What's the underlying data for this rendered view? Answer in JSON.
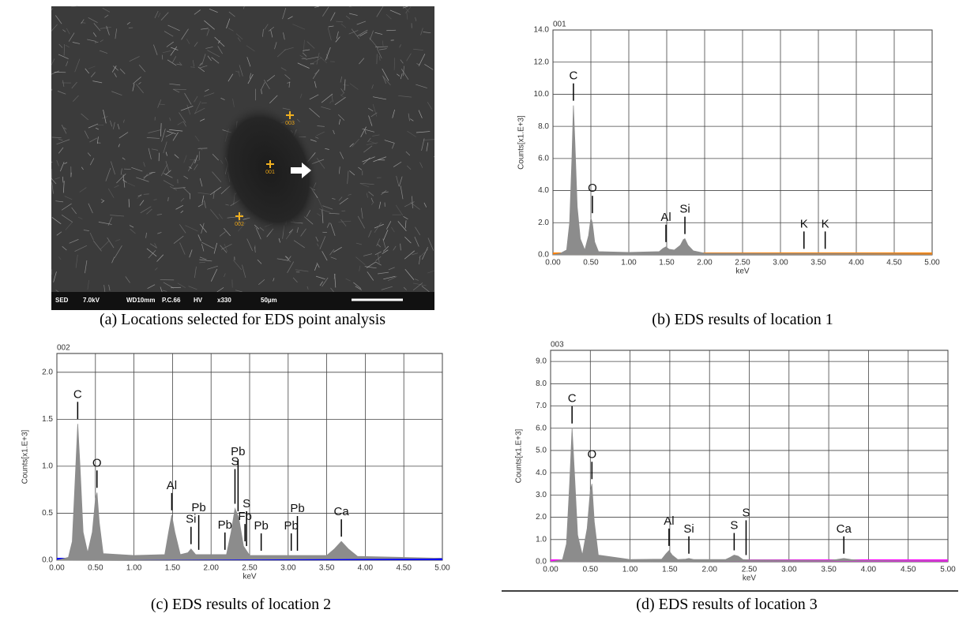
{
  "image": {
    "markers": [
      "003",
      "001",
      "002"
    ],
    "info_bar": [
      "SED",
      "7.0kV",
      "WD10mm",
      "P.C.66",
      "HV",
      "x330",
      "50µm"
    ]
  },
  "captions": [
    "(a) Locations selected for EDS point analysis",
    "(b) EDS results of location 1",
    "(c) EDS results of location 2",
    "(d) EDS results of location 3"
  ],
  "chart_data": [
    {
      "type": "area",
      "title": "001",
      "y_label": "Counts[x1.E+3]",
      "x_label": "keV",
      "xlim": [
        0,
        5
      ],
      "ylim": [
        0,
        14
      ],
      "xticks": [
        {
          "value": 0,
          "label": "0.00"
        },
        {
          "value": 0.5,
          "label": "0.50"
        },
        {
          "value": 1,
          "label": "1.00"
        },
        {
          "value": 1.5,
          "label": "1.50"
        },
        {
          "value": 2,
          "label": "2.00"
        },
        {
          "value": 2.5,
          "label": "2.50"
        },
        {
          "value": 3,
          "label": "3.00"
        },
        {
          "value": 3.5,
          "label": "3.50"
        },
        {
          "value": 4,
          "label": "4.00"
        },
        {
          "value": 4.5,
          "label": "4.50"
        },
        {
          "value": 5,
          "label": "5.00"
        }
      ],
      "yticks": [
        {
          "value": 0,
          "label": "0.0"
        },
        {
          "value": 2,
          "label": "2.0"
        },
        {
          "value": 4,
          "label": "4.0"
        },
        {
          "value": 6,
          "label": "6.0"
        },
        {
          "value": 8,
          "label": "8.0"
        },
        {
          "value": 10,
          "label": "10.0"
        },
        {
          "value": 12,
          "label": "12.0"
        },
        {
          "value": 14,
          "label": "14.0"
        }
      ],
      "grid": true,
      "color": "#ff8000",
      "fill": "#8c8c8c",
      "x": [
        0,
        0.1,
        0.18,
        0.22,
        0.25,
        0.27,
        0.29,
        0.32,
        0.36,
        0.42,
        0.47,
        0.5,
        0.52,
        0.55,
        0.6,
        1.0,
        1.4,
        1.45,
        1.49,
        1.53,
        1.6,
        1.68,
        1.72,
        1.74,
        1.78,
        1.85,
        2.0,
        3.0,
        4.0,
        5.0
      ],
      "values": [
        0,
        0.1,
        0.3,
        2,
        6,
        9.3,
        7,
        3,
        1,
        0.3,
        1.2,
        2.3,
        2.0,
        0.8,
        0.2,
        0.15,
        0.2,
        0.4,
        0.5,
        0.35,
        0.3,
        0.6,
        0.95,
        1.0,
        0.6,
        0.25,
        0.1,
        0.08,
        0.08,
        0.05
      ],
      "annotations": [
        {
          "text": "C",
          "x": 0.27
        },
        {
          "text": "O",
          "x": 0.52
        },
        {
          "text": "Al",
          "x": 1.49
        },
        {
          "text": "Si",
          "x": 1.74
        },
        {
          "text": "K",
          "x": 3.31
        },
        {
          "text": "K",
          "x": 3.59
        }
      ]
    },
    {
      "type": "area",
      "title": "002",
      "y_label": "Counts[x1.E+3]",
      "x_label": "keV",
      "xlim": [
        0,
        5
      ],
      "ylim": [
        0,
        2.2
      ],
      "xticks": [
        {
          "value": 0,
          "label": "0.00"
        },
        {
          "value": 0.5,
          "label": "0.50"
        },
        {
          "value": 1,
          "label": "1.00"
        },
        {
          "value": 1.5,
          "label": "1.50"
        },
        {
          "value": 2,
          "label": "2.00"
        },
        {
          "value": 2.5,
          "label": "2.50"
        },
        {
          "value": 3,
          "label": "3.00"
        },
        {
          "value": 3.5,
          "label": "3.50"
        },
        {
          "value": 4,
          "label": "4.00"
        },
        {
          "value": 4.5,
          "label": "4.50"
        },
        {
          "value": 5,
          "label": "5.00"
        }
      ],
      "yticks": [
        {
          "value": 0,
          "label": "0.0"
        },
        {
          "value": 0.5,
          "label": "0.5"
        },
        {
          "value": 1,
          "label": "1.0"
        },
        {
          "value": 1.5,
          "label": "1.5"
        },
        {
          "value": 2,
          "label": "2.0"
        }
      ],
      "grid": true,
      "color": "#0000ff",
      "fill": "#8c8c8c",
      "x": [
        0,
        0.15,
        0.2,
        0.24,
        0.27,
        0.3,
        0.34,
        0.4,
        0.46,
        0.5,
        0.52,
        0.55,
        0.6,
        1.0,
        1.4,
        1.45,
        1.49,
        1.53,
        1.6,
        1.7,
        1.74,
        1.8,
        2.2,
        2.26,
        2.31,
        2.36,
        2.42,
        2.5,
        3.5,
        3.6,
        3.69,
        3.78,
        3.9,
        5.0
      ],
      "values": [
        0,
        0.03,
        0.2,
        0.9,
        1.45,
        1.0,
        0.3,
        0.08,
        0.3,
        0.65,
        0.72,
        0.4,
        0.07,
        0.05,
        0.06,
        0.3,
        0.48,
        0.3,
        0.06,
        0.08,
        0.12,
        0.06,
        0.06,
        0.3,
        0.55,
        0.45,
        0.15,
        0.05,
        0.05,
        0.12,
        0.2,
        0.12,
        0.04,
        0.02
      ],
      "annotations": [
        {
          "text": "C",
          "x": 0.27
        },
        {
          "text": "O",
          "x": 0.52
        },
        {
          "text": "Al",
          "x": 1.49
        },
        {
          "text": "Si",
          "x": 1.74
        },
        {
          "text": "Pb",
          "x": 1.84
        },
        {
          "text": "Pb",
          "x": 2.18
        },
        {
          "text": "S",
          "x": 2.31
        },
        {
          "text": "Pb",
          "x": 2.35
        },
        {
          "text": "Fb",
          "x": 2.44
        },
        {
          "text": "S",
          "x": 2.46
        },
        {
          "text": "Pb",
          "x": 2.65
        },
        {
          "text": "Pb",
          "x": 3.04
        },
        {
          "text": "Pb",
          "x": 3.12
        },
        {
          "text": "Ca",
          "x": 3.69
        }
      ]
    },
    {
      "type": "area",
      "title": "003",
      "y_label": "Counts[x1.E+3]",
      "x_label": "keV",
      "xlim": [
        0,
        5
      ],
      "ylim": [
        0,
        9.5
      ],
      "xticks": [
        {
          "value": 0,
          "label": "0.00"
        },
        {
          "value": 0.5,
          "label": "0.50"
        },
        {
          "value": 1,
          "label": "1.00"
        },
        {
          "value": 1.5,
          "label": "1.50"
        },
        {
          "value": 2,
          "label": "2.00"
        },
        {
          "value": 2.5,
          "label": "2.50"
        },
        {
          "value": 3,
          "label": "3.00"
        },
        {
          "value": 3.5,
          "label": "3.50"
        },
        {
          "value": 4,
          "label": "4.00"
        },
        {
          "value": 4.5,
          "label": "4.50"
        },
        {
          "value": 5,
          "label": "5.00"
        }
      ],
      "yticks": [
        {
          "value": 0,
          "label": "0.0"
        },
        {
          "value": 1,
          "label": "1.0"
        },
        {
          "value": 2,
          "label": "2.0"
        },
        {
          "value": 3,
          "label": "3.0"
        },
        {
          "value": 4,
          "label": "4.0"
        },
        {
          "value": 5,
          "label": "5.0"
        },
        {
          "value": 6,
          "label": "6.0"
        },
        {
          "value": 7,
          "label": "7.0"
        },
        {
          "value": 8,
          "label": "8.0"
        },
        {
          "value": 9,
          "label": "9.0"
        }
      ],
      "grid": true,
      "color": "#ff00ff",
      "fill": "#8c8c8c",
      "x": [
        0,
        0.15,
        0.2,
        0.24,
        0.27,
        0.3,
        0.34,
        0.4,
        0.46,
        0.5,
        0.52,
        0.55,
        0.6,
        1.0,
        1.4,
        1.45,
        1.49,
        1.53,
        1.6,
        1.7,
        1.74,
        1.8,
        2.2,
        2.26,
        2.31,
        2.36,
        2.42,
        2.5,
        3.5,
        3.6,
        3.69,
        3.78,
        3.9,
        5.0
      ],
      "values": [
        0,
        0.1,
        0.8,
        3.5,
        6.0,
        4.0,
        1.2,
        0.3,
        1.5,
        3.2,
        3.5,
        1.8,
        0.3,
        0.1,
        0.12,
        0.35,
        0.5,
        0.3,
        0.1,
        0.12,
        0.15,
        0.1,
        0.1,
        0.2,
        0.3,
        0.25,
        0.1,
        0.08,
        0.06,
        0.1,
        0.15,
        0.1,
        0.06,
        0.04
      ],
      "annotations": [
        {
          "text": "C",
          "x": 0.27
        },
        {
          "text": "O",
          "x": 0.52
        },
        {
          "text": "Al",
          "x": 1.49
        },
        {
          "text": "Si",
          "x": 1.74
        },
        {
          "text": "S",
          "x": 2.31
        },
        {
          "text": "S",
          "x": 2.46
        },
        {
          "text": "Ca",
          "x": 3.69
        }
      ]
    }
  ]
}
